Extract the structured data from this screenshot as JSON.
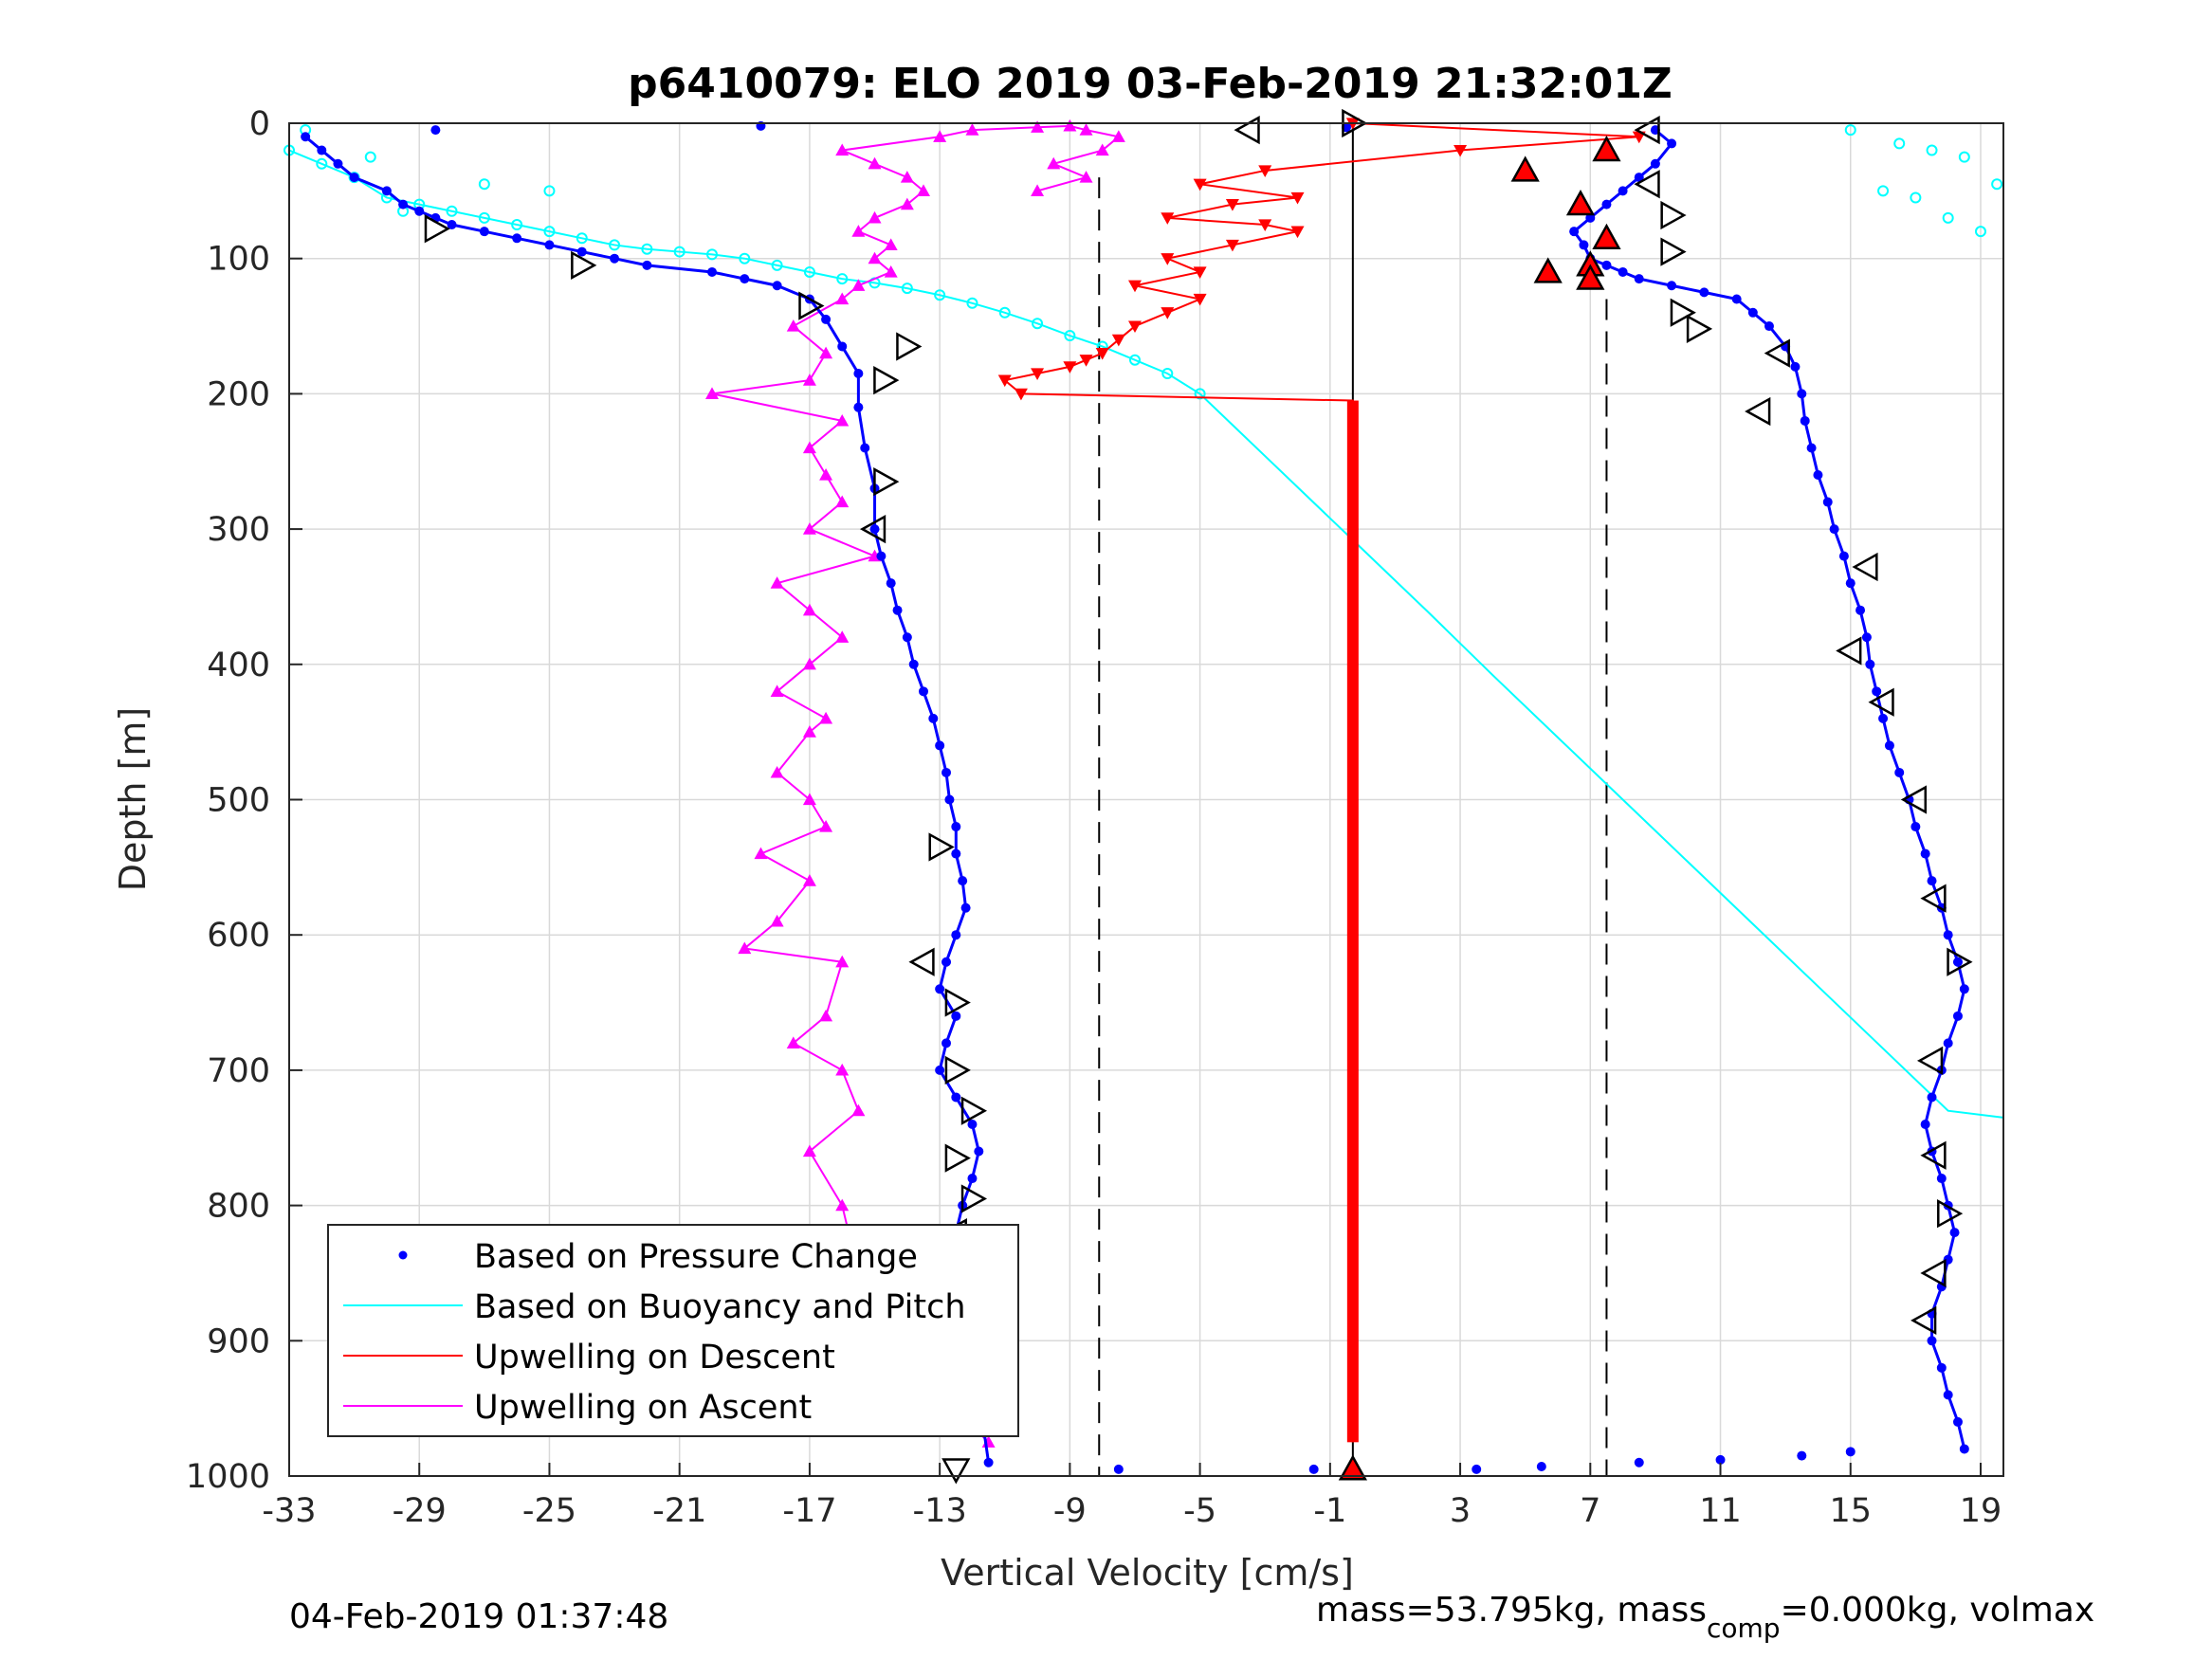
{
  "chart_data": {
    "type": "scatter",
    "title": "p6410079: ELO 2019 03-Feb-2019 21:32:01Z",
    "xlabel": "Vertical Velocity [cm/s]",
    "ylabel": "Depth [m]",
    "xlim": [
      -33,
      19.7
    ],
    "ylim": [
      1000,
      0
    ],
    "y_reversed": true,
    "grid": true,
    "legend_position": "bottom-left",
    "xticks": [
      -33,
      -29,
      -25,
      -21,
      -17,
      -13,
      -9,
      -5,
      -1,
      3,
      7,
      11,
      15,
      19
    ],
    "yticks": [
      0,
      100,
      200,
      300,
      400,
      500,
      600,
      700,
      800,
      900,
      1000
    ],
    "xtick_labels": [
      "-33",
      "-29",
      "-25",
      "-21",
      "-17",
      "-13",
      "-9",
      "-5",
      "-1",
      "3",
      "7",
      "11",
      "15",
      "19"
    ],
    "ytick_labels": [
      "0",
      "100",
      "200",
      "300",
      "400",
      "500",
      "600",
      "700",
      "800",
      "900",
      "1000"
    ],
    "reference_lines": [
      {
        "style": "dashed",
        "color": "#000000",
        "x": -8.1,
        "y_range": [
          40,
          1000
        ]
      },
      {
        "style": "dashed",
        "color": "#000000",
        "x": 7.5,
        "y_range": [
          130,
          1000
        ]
      },
      {
        "style": "solid",
        "color": "#000000",
        "x": -0.3,
        "y_range": [
          0,
          1000
        ]
      }
    ],
    "series": [
      {
        "name": "Based on Pressure Change",
        "color": "#0000ff",
        "marker": "dot",
        "descent": {
          "x": [
            -32.5,
            -32,
            -31.5,
            -31,
            -30,
            -29.5,
            -29,
            -28.5,
            -28,
            -27,
            -26,
            -25,
            -24,
            -23,
            -22,
            -20,
            -19,
            -18,
            -17,
            -16.5,
            -16,
            -15.5,
            -15.5,
            -15.3,
            -15,
            -15,
            -14.8,
            -14.5,
            -14.3,
            -14,
            -13.8,
            -13.5,
            -13.2,
            -13,
            -12.8,
            -12.7,
            -12.5,
            -12.5,
            -12.3,
            -12.2,
            -12.5,
            -12.8,
            -13,
            -12.5,
            -12.8,
            -13,
            -12.5,
            -12,
            -11.8,
            -12,
            -12.3,
            -12.5,
            -12.8,
            -13,
            -13,
            -12.5,
            -12,
            -11.8,
            -11.5
          ],
          "y": [
            10,
            20,
            30,
            40,
            50,
            60,
            65,
            70,
            75,
            80,
            85,
            90,
            95,
            100,
            105,
            110,
            115,
            120,
            130,
            145,
            165,
            185,
            210,
            240,
            270,
            300,
            320,
            340,
            360,
            380,
            400,
            420,
            440,
            460,
            480,
            500,
            520,
            540,
            560,
            580,
            600,
            620,
            640,
            660,
            680,
            700,
            720,
            740,
            760,
            780,
            800,
            820,
            840,
            860,
            880,
            900,
            920,
            940,
            990
          ]
        },
        "ascent": {
          "x": [
            18.5,
            18.3,
            18,
            17.8,
            17.5,
            17.5,
            17.8,
            18,
            18.2,
            18,
            17.8,
            17.5,
            17.3,
            17.5,
            17.8,
            18,
            18.3,
            18.5,
            18.3,
            18,
            17.8,
            17.5,
            17.3,
            17,
            16.8,
            16.5,
            16.2,
            16,
            15.8,
            15.6,
            15.5,
            15.3,
            15,
            14.8,
            14.5,
            14.3,
            14,
            13.8,
            13.6,
            13.5,
            13.3,
            13,
            12.5,
            12,
            11.5,
            10.5,
            9.5,
            8.5,
            8,
            7.5,
            7,
            6.8,
            6.5,
            7,
            7.5,
            8,
            8.5,
            9,
            9.5,
            9
          ],
          "y": [
            980,
            960,
            940,
            920,
            900,
            880,
            860,
            840,
            820,
            800,
            780,
            760,
            740,
            720,
            700,
            680,
            660,
            640,
            620,
            600,
            580,
            560,
            540,
            520,
            500,
            480,
            460,
            440,
            420,
            400,
            380,
            360,
            340,
            320,
            300,
            280,
            260,
            240,
            220,
            200,
            180,
            165,
            150,
            140,
            130,
            125,
            120,
            115,
            110,
            105,
            100,
            90,
            80,
            70,
            60,
            50,
            40,
            30,
            15,
            5
          ]
        },
        "surface_points": {
          "x": [
            -18.5,
            -28.5,
            -0.5,
            5.5,
            8.5,
            11,
            13.5,
            15,
            3.5,
            -1.5,
            -7.5
          ],
          "y": [
            2,
            5,
            3,
            993,
            990,
            988,
            985,
            982,
            995,
            995,
            995
          ]
        }
      },
      {
        "name": "Based on Buoyancy and Pitch",
        "color": "#00ffff",
        "marker": "circle-line",
        "descent": {
          "x": [
            -33,
            -32,
            -31,
            -30,
            -29,
            -28,
            -27,
            -26,
            -25,
            -24,
            -23,
            -22,
            -21,
            -20,
            -19,
            -18,
            -17,
            -16,
            -15,
            -14,
            -13,
            -12,
            -11,
            -10,
            -9,
            -8,
            -7,
            -6,
            -5,
            -4,
            -3,
            -2,
            -1,
            0,
            2,
            4,
            6,
            8,
            10,
            12,
            14,
            16,
            18,
            19.7
          ],
          "y": [
            20,
            30,
            40,
            55,
            60,
            65,
            70,
            75,
            80,
            85,
            90,
            93,
            95,
            97,
            100,
            105,
            110,
            115,
            118,
            122,
            127,
            133,
            140,
            148,
            157,
            165,
            175,
            185,
            200,
            223,
            246,
            269,
            292,
            315,
            361,
            408,
            454,
            500,
            546,
            592,
            638,
            684,
            730,
            735
          ]
        },
        "surface_points": {
          "x": [
            -32.5,
            -30.5,
            -27,
            -25,
            -29.5,
            15,
            16.5,
            17.5,
            18.5,
            19.5,
            16,
            17,
            18,
            19
          ],
          "y": [
            5,
            25,
            45,
            50,
            65,
            5,
            15,
            20,
            25,
            45,
            50,
            55,
            70,
            80
          ]
        }
      },
      {
        "name": "Upwelling on Descent",
        "color": "#ff0000",
        "marker": "triangle-down",
        "x": [
          -0.3,
          8.5,
          3,
          -3,
          -5,
          -2,
          -4,
          -6,
          -3,
          -2,
          -4,
          -6,
          -5,
          -7,
          -5,
          -6,
          -7,
          -7.5,
          -8,
          -8.5,
          -9,
          -10,
          -11,
          -10.5,
          -0.3,
          -0.3
        ],
        "y": [
          0,
          10,
          20,
          35,
          45,
          55,
          60,
          70,
          75,
          80,
          90,
          100,
          110,
          120,
          130,
          140,
          150,
          160,
          170,
          175,
          180,
          185,
          190,
          200,
          205,
          975
        ]
      },
      {
        "name": "Upwelling on Ascent",
        "color": "#ff00ff",
        "marker": "triangle-up",
        "x": [
          -11.5,
          -13,
          -14,
          -15,
          -15.5,
          -16,
          -17,
          -15.5,
          -16,
          -17.5,
          -16.5,
          -16,
          -19,
          -18,
          -17,
          -18.5,
          -16.5,
          -17,
          -18,
          -17,
          -16.5,
          -18,
          -17,
          -16,
          -17,
          -18,
          -15,
          -17,
          -16,
          -16.5,
          -17,
          -16,
          -20,
          -17,
          -16.5,
          -17.5,
          -16,
          -15.5,
          -14.5,
          -15,
          -14.5,
          -15.5,
          -15,
          -14,
          -13.5,
          -14,
          -15,
          -16,
          -13,
          -12,
          -10,
          -9,
          -8.5,
          -7.5,
          -8,
          -9.5,
          -8.5,
          -10
        ],
        "y": [
          975,
          940,
          910,
          880,
          850,
          800,
          760,
          730,
          700,
          680,
          660,
          620,
          610,
          590,
          560,
          540,
          520,
          500,
          480,
          450,
          440,
          420,
          400,
          380,
          360,
          340,
          320,
          300,
          280,
          260,
          240,
          220,
          200,
          190,
          170,
          150,
          130,
          120,
          110,
          100,
          90,
          80,
          70,
          60,
          50,
          40,
          30,
          20,
          10,
          5,
          3,
          2,
          5,
          10,
          20,
          30,
          40,
          50
        ]
      }
    ],
    "heading_markers": [
      {
        "x": -12.5,
        "y": 995,
        "dir": "down"
      },
      {
        "x": -13,
        "y": 935,
        "dir": "left"
      },
      {
        "x": -12.5,
        "y": 820,
        "dir": "left"
      },
      {
        "x": -12,
        "y": 795,
        "dir": "right"
      },
      {
        "x": -12.5,
        "y": 765,
        "dir": "right"
      },
      {
        "x": -12,
        "y": 730,
        "dir": "right"
      },
      {
        "x": -12.5,
        "y": 700,
        "dir": "right"
      },
      {
        "x": -12.5,
        "y": 650,
        "dir": "right"
      },
      {
        "x": -13.5,
        "y": 620,
        "dir": "left"
      },
      {
        "x": -13,
        "y": 535,
        "dir": "right"
      },
      {
        "x": -15,
        "y": 300,
        "dir": "left"
      },
      {
        "x": -14.7,
        "y": 265,
        "dir": "right"
      },
      {
        "x": -14.7,
        "y": 190,
        "dir": "right"
      },
      {
        "x": -14,
        "y": 165,
        "dir": "right"
      },
      {
        "x": -17,
        "y": 135,
        "dir": "right"
      },
      {
        "x": -24,
        "y": 105,
        "dir": "right"
      },
      {
        "x": -28.5,
        "y": 78,
        "dir": "right"
      },
      {
        "x": -3.5,
        "y": 5,
        "dir": "left"
      },
      {
        "x": -0.3,
        "y": 0,
        "dir": "right"
      },
      {
        "x": 8.8,
        "y": 5,
        "dir": "left"
      },
      {
        "x": 7.5,
        "y": 20,
        "dir": "up"
      },
      {
        "x": 5,
        "y": 35,
        "dir": "up"
      },
      {
        "x": 8.8,
        "y": 45,
        "dir": "left"
      },
      {
        "x": 9.5,
        "y": 68,
        "dir": "right"
      },
      {
        "x": 6.7,
        "y": 60,
        "dir": "up"
      },
      {
        "x": 7.5,
        "y": 85,
        "dir": "up"
      },
      {
        "x": 9.5,
        "y": 95,
        "dir": "right"
      },
      {
        "x": 7,
        "y": 105,
        "dir": "up"
      },
      {
        "x": 5.7,
        "y": 110,
        "dir": "up"
      },
      {
        "x": 7,
        "y": 115,
        "dir": "up"
      },
      {
        "x": 9.8,
        "y": 140,
        "dir": "right"
      },
      {
        "x": 10.3,
        "y": 152,
        "dir": "right"
      },
      {
        "x": 12.8,
        "y": 170,
        "dir": "left"
      },
      {
        "x": 12.2,
        "y": 213,
        "dir": "left"
      },
      {
        "x": 15.5,
        "y": 328,
        "dir": "left"
      },
      {
        "x": 15,
        "y": 390,
        "dir": "left"
      },
      {
        "x": 16,
        "y": 428,
        "dir": "left"
      },
      {
        "x": 17,
        "y": 500,
        "dir": "left"
      },
      {
        "x": 17.6,
        "y": 573,
        "dir": "left"
      },
      {
        "x": 18.3,
        "y": 620,
        "dir": "right"
      },
      {
        "x": 17.5,
        "y": 693,
        "dir": "left"
      },
      {
        "x": 17.6,
        "y": 763,
        "dir": "left"
      },
      {
        "x": 18,
        "y": 806,
        "dir": "right"
      },
      {
        "x": 17.6,
        "y": 850,
        "dir": "left"
      },
      {
        "x": 17.3,
        "y": 885,
        "dir": "left"
      },
      {
        "x": -0.3,
        "y": 995,
        "dir": "up"
      }
    ]
  },
  "legend": {
    "entries": [
      {
        "label": "Based on Pressure Change",
        "color": "#0000ff",
        "style": "dot"
      },
      {
        "label": "Based on Buoyancy and Pitch",
        "color": "#00ffff",
        "style": "line"
      },
      {
        "label": "Upwelling on Descent",
        "color": "#ff0000",
        "style": "line"
      },
      {
        "label": "Upwelling on Ascent",
        "color": "#ff00ff",
        "style": "line"
      }
    ]
  },
  "footer": {
    "timestamp": "04-Feb-2019 01:37:48",
    "mass_text_a": "mass=53.795kg, mass",
    "mass_sub": "comp",
    "mass_text_b": "=0.000kg, volmax"
  }
}
